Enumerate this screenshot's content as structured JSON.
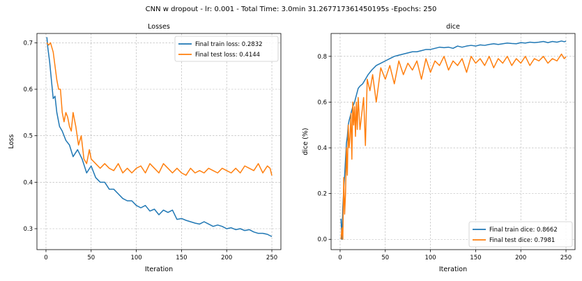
{
  "suptitle": "CNN w dropout - lr: 0.001 - Total Time: 3.0min 31.267717361450195s -Epochs: 250",
  "colors": {
    "train": "#1f77b4",
    "test": "#ff7f0e",
    "grid": "#b0b0b0"
  },
  "chart_data": [
    {
      "type": "line",
      "title": "Losses",
      "xlabel": "Iteration",
      "ylabel": "Loss",
      "xlim": [
        -10,
        260
      ],
      "ylim": [
        0.255,
        0.72
      ],
      "xticks": [
        0,
        50,
        100,
        150,
        200,
        250
      ],
      "yticks": [
        0.3,
        0.4,
        0.5,
        0.6,
        0.7
      ],
      "ytick_decimals": 1,
      "grid": true,
      "legend_position": "upper right",
      "series": [
        {
          "name": "Final train loss: 0.2832",
          "color_key": "train",
          "x": [
            1,
            2,
            4,
            6,
            8,
            10,
            12,
            15,
            18,
            22,
            26,
            30,
            35,
            40,
            45,
            50,
            55,
            60,
            65,
            70,
            75,
            80,
            85,
            90,
            95,
            100,
            105,
            110,
            115,
            120,
            125,
            130,
            135,
            140,
            145,
            150,
            155,
            160,
            165,
            170,
            175,
            180,
            185,
            190,
            195,
            200,
            205,
            210,
            215,
            220,
            225,
            230,
            235,
            240,
            245,
            248,
            250
          ],
          "y": [
            0.712,
            0.69,
            0.66,
            0.62,
            0.58,
            0.585,
            0.55,
            0.52,
            0.51,
            0.49,
            0.48,
            0.455,
            0.47,
            0.45,
            0.42,
            0.435,
            0.41,
            0.4,
            0.4,
            0.385,
            0.385,
            0.375,
            0.365,
            0.36,
            0.36,
            0.35,
            0.345,
            0.35,
            0.338,
            0.342,
            0.33,
            0.34,
            0.335,
            0.34,
            0.32,
            0.322,
            0.318,
            0.315,
            0.312,
            0.31,
            0.315,
            0.31,
            0.305,
            0.308,
            0.305,
            0.3,
            0.302,
            0.298,
            0.3,
            0.296,
            0.298,
            0.293,
            0.29,
            0.29,
            0.288,
            0.285,
            0.2832
          ]
        },
        {
          "name": "Final test loss: 0.4144",
          "color_key": "test",
          "x": [
            1,
            3,
            5,
            8,
            10,
            12,
            14,
            16,
            18,
            20,
            22,
            24,
            26,
            28,
            30,
            33,
            36,
            39,
            42,
            45,
            48,
            50,
            55,
            60,
            65,
            70,
            75,
            80,
            85,
            90,
            95,
            100,
            105,
            110,
            115,
            120,
            125,
            130,
            135,
            140,
            145,
            150,
            155,
            160,
            165,
            170,
            175,
            180,
            185,
            190,
            195,
            200,
            205,
            210,
            215,
            220,
            225,
            230,
            235,
            240,
            245,
            248,
            250
          ],
          "y": [
            0.7,
            0.695,
            0.7,
            0.68,
            0.65,
            0.62,
            0.6,
            0.6,
            0.55,
            0.53,
            0.55,
            0.54,
            0.52,
            0.51,
            0.55,
            0.52,
            0.48,
            0.5,
            0.45,
            0.44,
            0.47,
            0.45,
            0.44,
            0.43,
            0.44,
            0.43,
            0.425,
            0.44,
            0.42,
            0.43,
            0.42,
            0.43,
            0.435,
            0.42,
            0.44,
            0.43,
            0.42,
            0.44,
            0.43,
            0.42,
            0.43,
            0.42,
            0.415,
            0.43,
            0.42,
            0.425,
            0.42,
            0.43,
            0.425,
            0.42,
            0.43,
            0.425,
            0.42,
            0.43,
            0.42,
            0.435,
            0.43,
            0.425,
            0.44,
            0.42,
            0.435,
            0.43,
            0.4144
          ]
        }
      ]
    },
    {
      "type": "line",
      "title": "dice",
      "xlabel": "Iteration",
      "ylabel": "dice (%)",
      "xlim": [
        -10,
        260
      ],
      "ylim": [
        -0.045,
        0.9
      ],
      "xticks": [
        0,
        50,
        100,
        150,
        200,
        250
      ],
      "yticks": [
        0.0,
        0.2,
        0.4,
        0.6,
        0.8
      ],
      "ytick_decimals": 1,
      "grid": true,
      "legend_position": "lower right",
      "series": [
        {
          "name": "Final train dice: 0.8662",
          "color_key": "train",
          "x": [
            1,
            2,
            3,
            4,
            5,
            6,
            7,
            8,
            9,
            10,
            12,
            14,
            16,
            18,
            20,
            22,
            25,
            28,
            31,
            35,
            40,
            45,
            50,
            55,
            60,
            65,
            70,
            75,
            80,
            85,
            90,
            95,
            100,
            105,
            110,
            115,
            120,
            125,
            130,
            135,
            140,
            145,
            150,
            155,
            160,
            165,
            170,
            175,
            180,
            185,
            190,
            195,
            200,
            205,
            210,
            215,
            220,
            225,
            230,
            235,
            240,
            245,
            248,
            250
          ],
          "y": [
            0.09,
            0.0,
            0.14,
            0.22,
            0.28,
            0.35,
            0.42,
            0.45,
            0.5,
            0.52,
            0.55,
            0.58,
            0.6,
            0.63,
            0.66,
            0.67,
            0.68,
            0.7,
            0.72,
            0.74,
            0.76,
            0.77,
            0.78,
            0.79,
            0.8,
            0.805,
            0.81,
            0.815,
            0.82,
            0.82,
            0.825,
            0.83,
            0.83,
            0.835,
            0.84,
            0.838,
            0.84,
            0.835,
            0.845,
            0.84,
            0.845,
            0.848,
            0.845,
            0.85,
            0.848,
            0.852,
            0.855,
            0.852,
            0.855,
            0.858,
            0.856,
            0.855,
            0.86,
            0.858,
            0.862,
            0.86,
            0.862,
            0.865,
            0.86,
            0.865,
            0.862,
            0.867,
            0.864,
            0.8662
          ]
        },
        {
          "name": "Final test dice: 0.7981",
          "color_key": "test",
          "x": [
            1,
            2,
            3,
            4,
            5,
            6,
            7,
            8,
            9,
            10,
            11,
            12,
            13,
            14,
            15,
            16,
            17,
            18,
            19,
            20,
            22,
            24,
            26,
            28,
            30,
            33,
            36,
            40,
            45,
            50,
            55,
            60,
            65,
            70,
            75,
            80,
            85,
            90,
            95,
            100,
            105,
            110,
            115,
            120,
            125,
            130,
            135,
            140,
            145,
            150,
            155,
            160,
            165,
            170,
            175,
            180,
            185,
            190,
            195,
            200,
            205,
            210,
            215,
            220,
            225,
            230,
            235,
            240,
            245,
            248,
            250
          ],
          "y": [
            0.0,
            0.05,
            0.0,
            0.27,
            0.11,
            0.2,
            0.4,
            0.28,
            0.5,
            0.4,
            0.45,
            0.55,
            0.35,
            0.6,
            0.5,
            0.58,
            0.45,
            0.6,
            0.48,
            0.62,
            0.48,
            0.55,
            0.62,
            0.41,
            0.7,
            0.65,
            0.72,
            0.6,
            0.75,
            0.7,
            0.76,
            0.68,
            0.78,
            0.72,
            0.77,
            0.74,
            0.78,
            0.7,
            0.79,
            0.73,
            0.78,
            0.76,
            0.8,
            0.74,
            0.78,
            0.76,
            0.79,
            0.73,
            0.8,
            0.77,
            0.79,
            0.76,
            0.8,
            0.75,
            0.79,
            0.77,
            0.8,
            0.76,
            0.79,
            0.77,
            0.8,
            0.76,
            0.79,
            0.78,
            0.8,
            0.77,
            0.79,
            0.78,
            0.81,
            0.79,
            0.7981
          ]
        }
      ]
    }
  ]
}
